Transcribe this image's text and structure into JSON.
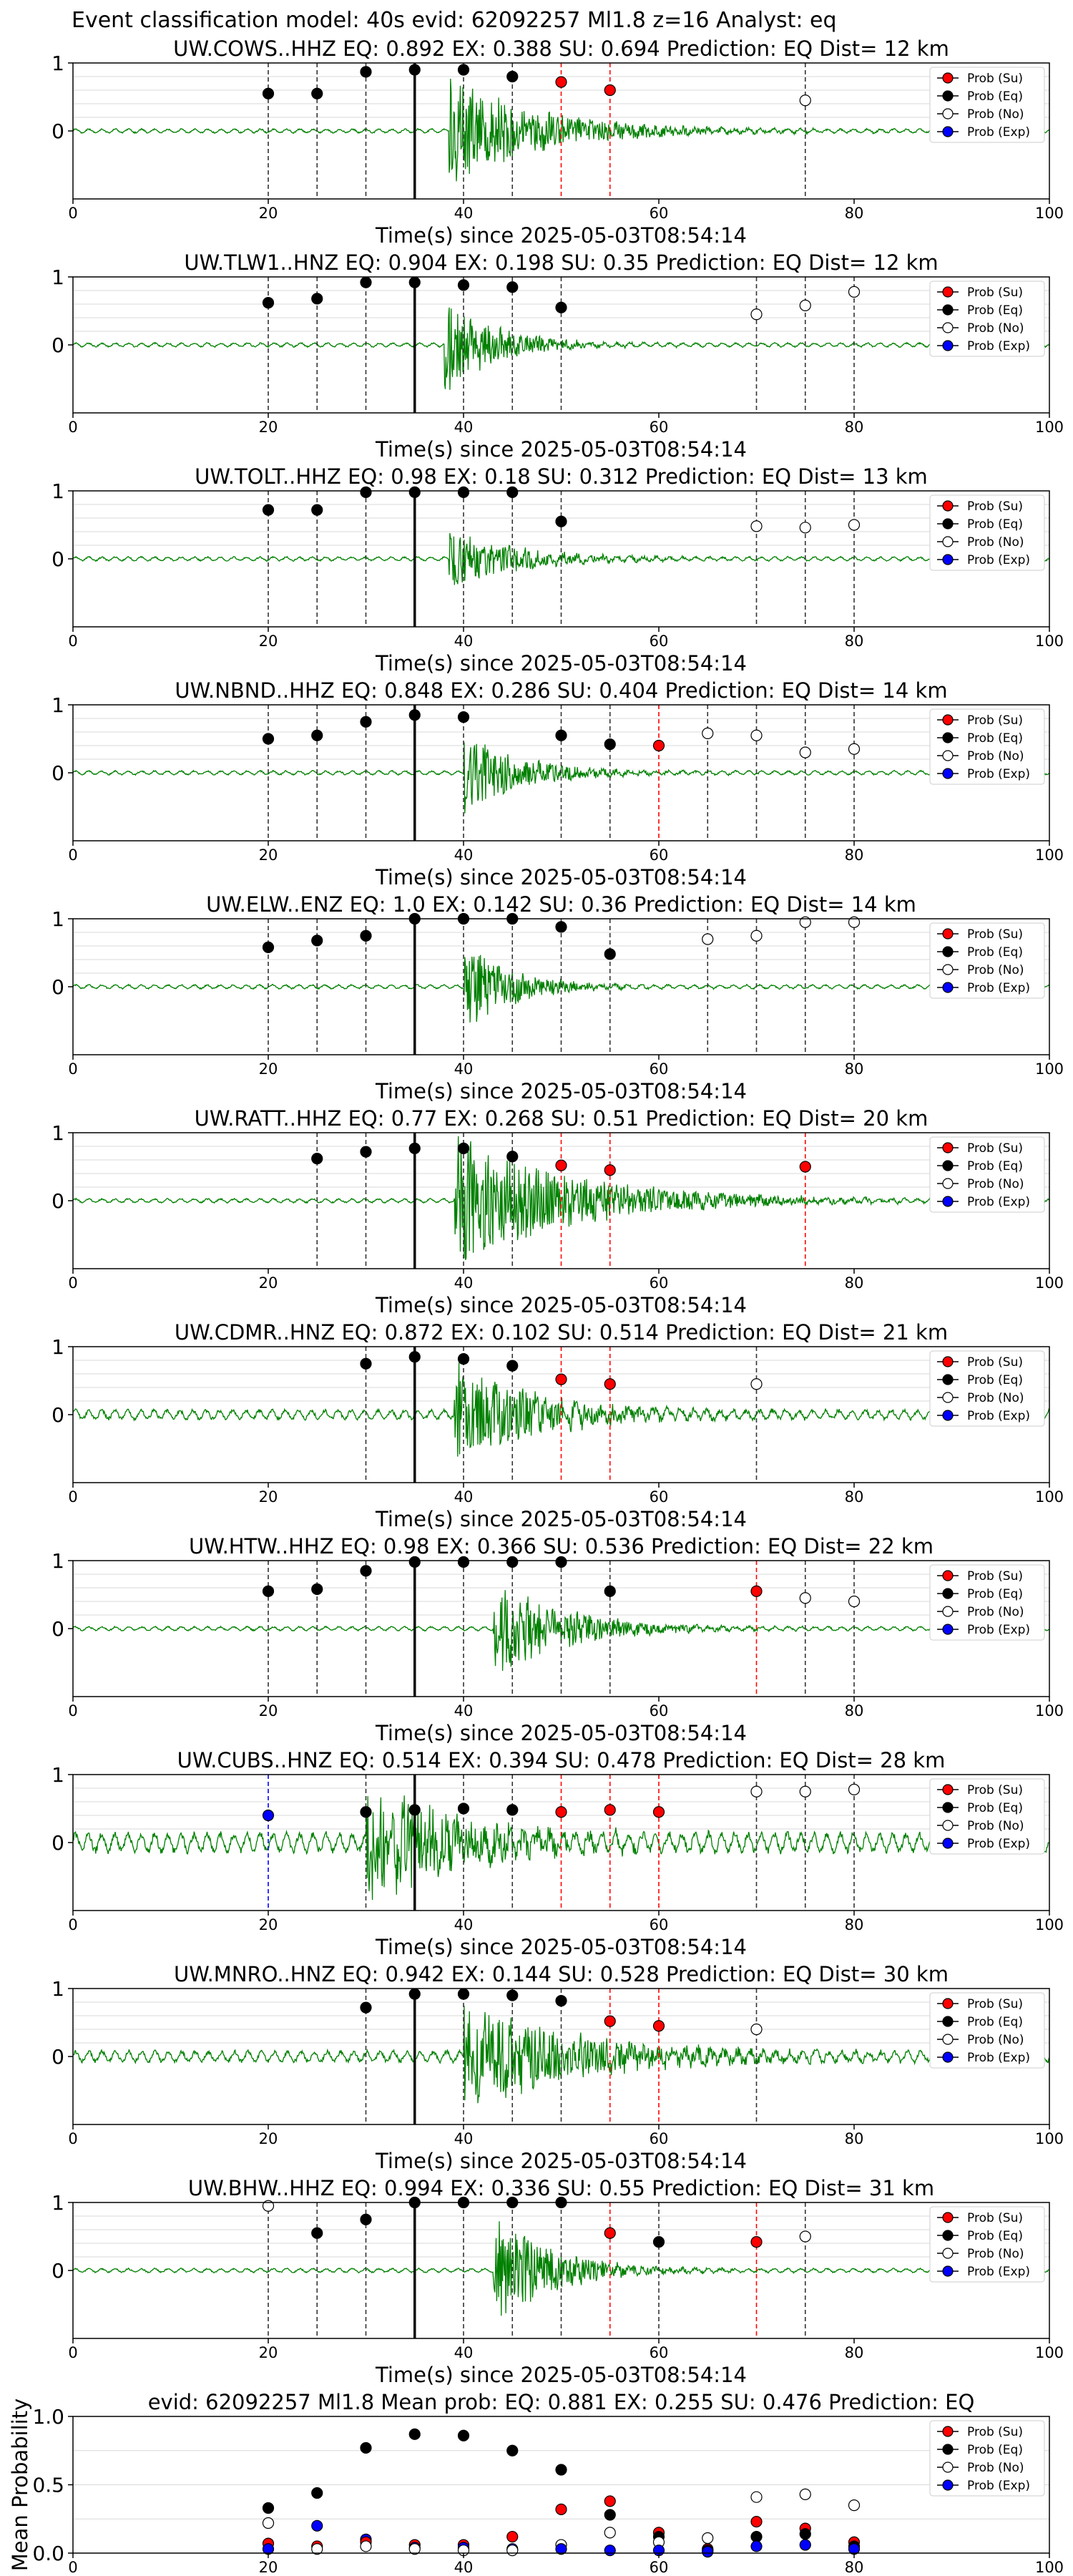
{
  "figure_title": "Event classification model: 40s evid: 62092257 Ml1.8 z=16 Analyst: eq",
  "xlabel": "Time(s) since 2025-05-03T08:54:14",
  "legend": [
    "Prob (Su)",
    "Prob (Eq)",
    "Prob (No)",
    "Prob (Exp)"
  ],
  "colors": {
    "su": "#ff0000",
    "eq": "#000000",
    "no": "#ffffff",
    "exp": "#0000ff",
    "trace": "#008000"
  },
  "chart_data": [
    {
      "type": "line",
      "title": "UW.COWS..HHZ   EQ: 0.892  EX: 0.388  SU: 0.694   Prediction: EQ    Dist= 12 km",
      "xlim": [
        0,
        100
      ],
      "ylim": [
        -1,
        1
      ],
      "xticks": [
        0,
        20,
        40,
        60,
        80,
        100
      ],
      "yticks": [
        1,
        0
      ],
      "grid": true,
      "legend": "top-right",
      "onset": 38.5,
      "amp": 0.85,
      "decay": 9,
      "points": [
        {
          "x": 20,
          "y": 0.55,
          "c": "eq"
        },
        {
          "x": 25,
          "y": 0.55,
          "c": "eq"
        },
        {
          "x": 30,
          "y": 0.87,
          "c": "eq"
        },
        {
          "x": 35,
          "y": 0.9,
          "c": "eq"
        },
        {
          "x": 40,
          "y": 0.9,
          "c": "eq"
        },
        {
          "x": 45,
          "y": 0.8,
          "c": "eq"
        },
        {
          "x": 50,
          "y": 0.72,
          "c": "su"
        },
        {
          "x": 55,
          "y": 0.6,
          "c": "su"
        },
        {
          "x": 75,
          "y": 0.45,
          "c": "no"
        }
      ]
    },
    {
      "type": "line",
      "title": "UW.TLW1..HNZ   EQ: 0.904  EX: 0.198  SU: 0.35   Prediction: EQ    Dist= 12 km",
      "xlim": [
        0,
        100
      ],
      "ylim": [
        -1,
        1
      ],
      "xticks": [
        0,
        20,
        40,
        60,
        80,
        100
      ],
      "yticks": [
        1,
        0
      ],
      "grid": true,
      "legend": "top-right",
      "onset": 38,
      "amp": 0.75,
      "decay": 5,
      "points": [
        {
          "x": 20,
          "y": 0.62,
          "c": "eq"
        },
        {
          "x": 25,
          "y": 0.68,
          "c": "eq"
        },
        {
          "x": 30,
          "y": 0.92,
          "c": "eq"
        },
        {
          "x": 35,
          "y": 0.92,
          "c": "eq"
        },
        {
          "x": 40,
          "y": 0.88,
          "c": "eq"
        },
        {
          "x": 45,
          "y": 0.85,
          "c": "eq"
        },
        {
          "x": 50,
          "y": 0.55,
          "c": "eq"
        },
        {
          "x": 70,
          "y": 0.45,
          "c": "no"
        },
        {
          "x": 75,
          "y": 0.58,
          "c": "no"
        },
        {
          "x": 80,
          "y": 0.78,
          "c": "no"
        }
      ]
    },
    {
      "type": "line",
      "title": "UW.TOLT..HHZ   EQ: 0.98  EX: 0.18  SU: 0.312   Prediction: EQ    Dist= 13 km",
      "xlim": [
        0,
        100
      ],
      "ylim": [
        -1,
        1
      ],
      "xticks": [
        0,
        20,
        40,
        60,
        80,
        100
      ],
      "yticks": [
        1,
        0
      ],
      "grid": true,
      "legend": "top-right",
      "onset": 38.5,
      "amp": 0.45,
      "decay": 7,
      "points": [
        {
          "x": 20,
          "y": 0.72,
          "c": "eq"
        },
        {
          "x": 25,
          "y": 0.72,
          "c": "eq"
        },
        {
          "x": 30,
          "y": 0.98,
          "c": "eq"
        },
        {
          "x": 35,
          "y": 0.98,
          "c": "eq"
        },
        {
          "x": 40,
          "y": 0.98,
          "c": "eq"
        },
        {
          "x": 45,
          "y": 0.98,
          "c": "eq"
        },
        {
          "x": 50,
          "y": 0.55,
          "c": "eq"
        },
        {
          "x": 70,
          "y": 0.48,
          "c": "no"
        },
        {
          "x": 75,
          "y": 0.46,
          "c": "no"
        },
        {
          "x": 80,
          "y": 0.5,
          "c": "no"
        }
      ]
    },
    {
      "type": "line",
      "title": "UW.NBND..HHZ   EQ: 0.848  EX: 0.286  SU: 0.404   Prediction: EQ    Dist= 14 km",
      "xlim": [
        0,
        100
      ],
      "ylim": [
        -1,
        1
      ],
      "xticks": [
        0,
        20,
        40,
        60,
        80,
        100
      ],
      "yticks": [
        1,
        0
      ],
      "grid": true,
      "legend": "top-right",
      "onset": 40,
      "amp": 0.6,
      "decay": 6,
      "points": [
        {
          "x": 20,
          "y": 0.5,
          "c": "eq"
        },
        {
          "x": 25,
          "y": 0.55,
          "c": "eq"
        },
        {
          "x": 30,
          "y": 0.75,
          "c": "eq"
        },
        {
          "x": 35,
          "y": 0.85,
          "c": "eq"
        },
        {
          "x": 40,
          "y": 0.82,
          "c": "eq"
        },
        {
          "x": 50,
          "y": 0.55,
          "c": "eq"
        },
        {
          "x": 55,
          "y": 0.42,
          "c": "eq"
        },
        {
          "x": 60,
          "y": 0.4,
          "c": "su"
        },
        {
          "x": 65,
          "y": 0.58,
          "c": "no"
        },
        {
          "x": 70,
          "y": 0.55,
          "c": "no"
        },
        {
          "x": 75,
          "y": 0.3,
          "c": "no"
        },
        {
          "x": 80,
          "y": 0.35,
          "c": "no"
        }
      ]
    },
    {
      "type": "line",
      "title": "UW.ELW..ENZ   EQ: 1.0  EX: 0.142  SU: 0.36   Prediction: EQ    Dist= 14 km",
      "xlim": [
        0,
        100
      ],
      "ylim": [
        -1,
        1
      ],
      "xticks": [
        0,
        20,
        40,
        60,
        80,
        100
      ],
      "yticks": [
        1,
        0
      ],
      "grid": true,
      "legend": "top-right",
      "onset": 40,
      "amp": 0.65,
      "decay": 5,
      "points": [
        {
          "x": 20,
          "y": 0.58,
          "c": "eq"
        },
        {
          "x": 25,
          "y": 0.68,
          "c": "eq"
        },
        {
          "x": 30,
          "y": 0.75,
          "c": "eq"
        },
        {
          "x": 35,
          "y": 1.0,
          "c": "eq"
        },
        {
          "x": 40,
          "y": 1.0,
          "c": "eq"
        },
        {
          "x": 45,
          "y": 1.0,
          "c": "eq"
        },
        {
          "x": 50,
          "y": 0.88,
          "c": "eq"
        },
        {
          "x": 55,
          "y": 0.48,
          "c": "eq"
        },
        {
          "x": 65,
          "y": 0.7,
          "c": "no"
        },
        {
          "x": 70,
          "y": 0.75,
          "c": "no"
        },
        {
          "x": 75,
          "y": 0.95,
          "c": "no"
        },
        {
          "x": 80,
          "y": 0.95,
          "c": "no"
        }
      ]
    },
    {
      "type": "line",
      "title": "UW.RATT..HHZ   EQ: 0.77  EX: 0.268  SU: 0.51   Prediction: EQ    Dist= 20 km",
      "xlim": [
        0,
        100
      ],
      "ylim": [
        -1,
        1
      ],
      "xticks": [
        0,
        20,
        40,
        60,
        80,
        100
      ],
      "yticks": [
        1,
        0
      ],
      "grid": true,
      "legend": "top-right",
      "onset": 39,
      "amp": 1.0,
      "decay": 12,
      "points": [
        {
          "x": 25,
          "y": 0.62,
          "c": "eq"
        },
        {
          "x": 30,
          "y": 0.72,
          "c": "eq"
        },
        {
          "x": 35,
          "y": 0.77,
          "c": "eq"
        },
        {
          "x": 40,
          "y": 0.77,
          "c": "eq"
        },
        {
          "x": 45,
          "y": 0.65,
          "c": "eq"
        },
        {
          "x": 50,
          "y": 0.52,
          "c": "su"
        },
        {
          "x": 55,
          "y": 0.45,
          "c": "su"
        },
        {
          "x": 75,
          "y": 0.5,
          "c": "su"
        }
      ]
    },
    {
      "type": "line",
      "title": "UW.CDMR..HNZ   EQ: 0.872  EX: 0.102  SU: 0.514   Prediction: EQ    Dist= 21 km",
      "xlim": [
        0,
        100
      ],
      "ylim": [
        -1,
        1
      ],
      "xticks": [
        0,
        20,
        40,
        60,
        80,
        100
      ],
      "yticks": [
        1,
        0
      ],
      "grid": true,
      "legend": "top-right",
      "onset": 39,
      "amp": 0.75,
      "decay": 9,
      "noise": 0.06,
      "points": [
        {
          "x": 30,
          "y": 0.75,
          "c": "eq"
        },
        {
          "x": 35,
          "y": 0.85,
          "c": "eq"
        },
        {
          "x": 40,
          "y": 0.82,
          "c": "eq"
        },
        {
          "x": 45,
          "y": 0.72,
          "c": "eq"
        },
        {
          "x": 50,
          "y": 0.52,
          "c": "su"
        },
        {
          "x": 55,
          "y": 0.45,
          "c": "su"
        },
        {
          "x": 70,
          "y": 0.45,
          "c": "no"
        }
      ]
    },
    {
      "type": "line",
      "title": "UW.HTW..HHZ   EQ: 0.98  EX: 0.366  SU: 0.536   Prediction: EQ    Dist= 22 km",
      "xlim": [
        0,
        100
      ],
      "ylim": [
        -1,
        1
      ],
      "xticks": [
        0,
        20,
        40,
        60,
        80,
        100
      ],
      "yticks": [
        1,
        0
      ],
      "grid": true,
      "legend": "top-right",
      "onset": 43,
      "amp": 0.8,
      "decay": 7,
      "points": [
        {
          "x": 20,
          "y": 0.55,
          "c": "eq"
        },
        {
          "x": 25,
          "y": 0.58,
          "c": "eq"
        },
        {
          "x": 30,
          "y": 0.85,
          "c": "eq"
        },
        {
          "x": 35,
          "y": 0.98,
          "c": "eq"
        },
        {
          "x": 40,
          "y": 0.98,
          "c": "eq"
        },
        {
          "x": 45,
          "y": 0.98,
          "c": "eq"
        },
        {
          "x": 50,
          "y": 0.98,
          "c": "eq"
        },
        {
          "x": 55,
          "y": 0.55,
          "c": "eq"
        },
        {
          "x": 70,
          "y": 0.55,
          "c": "su"
        },
        {
          "x": 75,
          "y": 0.45,
          "c": "no"
        },
        {
          "x": 80,
          "y": 0.4,
          "c": "no"
        }
      ]
    },
    {
      "type": "line",
      "title": "UW.CUBS..HNZ   EQ: 0.514  EX: 0.394  SU: 0.478   Prediction: EQ    Dist= 28 km",
      "xlim": [
        0,
        100
      ],
      "ylim": [
        -1,
        1
      ],
      "xticks": [
        0,
        20,
        40,
        60,
        80,
        100
      ],
      "yticks": [
        1,
        0
      ],
      "grid": true,
      "legend": "top-right",
      "onset": 30,
      "amp": 0.9,
      "decay": 10,
      "noise": 0.12,
      "points": [
        {
          "x": 20,
          "y": 0.4,
          "c": "exp"
        },
        {
          "x": 30,
          "y": 0.45,
          "c": "eq"
        },
        {
          "x": 35,
          "y": 0.48,
          "c": "eq"
        },
        {
          "x": 40,
          "y": 0.5,
          "c": "eq"
        },
        {
          "x": 45,
          "y": 0.48,
          "c": "eq"
        },
        {
          "x": 50,
          "y": 0.45,
          "c": "su"
        },
        {
          "x": 55,
          "y": 0.48,
          "c": "su"
        },
        {
          "x": 60,
          "y": 0.45,
          "c": "su"
        },
        {
          "x": 70,
          "y": 0.75,
          "c": "no"
        },
        {
          "x": 75,
          "y": 0.75,
          "c": "no"
        },
        {
          "x": 80,
          "y": 0.78,
          "c": "no"
        }
      ]
    },
    {
      "type": "line",
      "title": "UW.MNRO..HNZ   EQ: 0.942  EX: 0.144  SU: 0.528   Prediction: EQ    Dist= 30 km",
      "xlim": [
        0,
        100
      ],
      "ylim": [
        -1,
        1
      ],
      "xticks": [
        0,
        20,
        40,
        60,
        80,
        100
      ],
      "yticks": [
        1,
        0
      ],
      "grid": true,
      "legend": "top-right",
      "onset": 40,
      "amp": 0.8,
      "decay": 12,
      "noise": 0.07,
      "points": [
        {
          "x": 30,
          "y": 0.72,
          "c": "eq"
        },
        {
          "x": 35,
          "y": 0.92,
          "c": "eq"
        },
        {
          "x": 40,
          "y": 0.92,
          "c": "eq"
        },
        {
          "x": 45,
          "y": 0.9,
          "c": "eq"
        },
        {
          "x": 50,
          "y": 0.82,
          "c": "eq"
        },
        {
          "x": 55,
          "y": 0.52,
          "c": "su"
        },
        {
          "x": 60,
          "y": 0.45,
          "c": "su"
        },
        {
          "x": 70,
          "y": 0.4,
          "c": "no"
        }
      ]
    },
    {
      "type": "line",
      "title": "UW.BHW..HHZ   EQ: 0.994  EX: 0.336  SU: 0.55   Prediction: EQ    Dist= 31 km",
      "xlim": [
        0,
        100
      ],
      "ylim": [
        -1,
        1
      ],
      "xticks": [
        0,
        20,
        40,
        60,
        80,
        100
      ],
      "yticks": [
        1,
        0
      ],
      "grid": true,
      "legend": "top-right",
      "onset": 43,
      "amp": 0.85,
      "decay": 6,
      "points": [
        {
          "x": 20,
          "y": 0.95,
          "c": "no"
        },
        {
          "x": 25,
          "y": 0.55,
          "c": "eq"
        },
        {
          "x": 30,
          "y": 0.75,
          "c": "eq"
        },
        {
          "x": 35,
          "y": 1.0,
          "c": "eq"
        },
        {
          "x": 40,
          "y": 1.0,
          "c": "eq"
        },
        {
          "x": 45,
          "y": 1.0,
          "c": "eq"
        },
        {
          "x": 50,
          "y": 1.0,
          "c": "eq"
        },
        {
          "x": 55,
          "y": 0.55,
          "c": "su"
        },
        {
          "x": 60,
          "y": 0.42,
          "c": "eq"
        },
        {
          "x": 70,
          "y": 0.42,
          "c": "su"
        },
        {
          "x": 75,
          "y": 0.5,
          "c": "no"
        }
      ]
    },
    {
      "type": "scatter",
      "title": "evid: 62092257  Ml1.8   Mean prob:   EQ: 0.881  EX: 0.255  SU: 0.476   Prediction: EQ",
      "ylabel": "Mean Probability",
      "xlim": [
        0,
        100
      ],
      "ylim": [
        0,
        1
      ],
      "xticks": [
        0,
        20,
        40,
        60,
        80,
        100
      ],
      "yticks": [
        1.0,
        0.5,
        0.0
      ],
      "grid": true,
      "legend": "top-right",
      "points": [
        {
          "x": 20,
          "y": 0.33,
          "c": "eq"
        },
        {
          "x": 20,
          "y": 0.22,
          "c": "no"
        },
        {
          "x": 20,
          "y": 0.07,
          "c": "su"
        },
        {
          "x": 20,
          "y": 0.03,
          "c": "exp"
        },
        {
          "x": 25,
          "y": 0.44,
          "c": "eq"
        },
        {
          "x": 25,
          "y": 0.2,
          "c": "exp"
        },
        {
          "x": 25,
          "y": 0.05,
          "c": "su"
        },
        {
          "x": 25,
          "y": 0.03,
          "c": "no"
        },
        {
          "x": 30,
          "y": 0.77,
          "c": "eq"
        },
        {
          "x": 30,
          "y": 0.1,
          "c": "exp"
        },
        {
          "x": 30,
          "y": 0.08,
          "c": "su"
        },
        {
          "x": 30,
          "y": 0.05,
          "c": "no"
        },
        {
          "x": 35,
          "y": 0.87,
          "c": "eq"
        },
        {
          "x": 35,
          "y": 0.06,
          "c": "su"
        },
        {
          "x": 35,
          "y": 0.04,
          "c": "exp"
        },
        {
          "x": 35,
          "y": 0.03,
          "c": "no"
        },
        {
          "x": 40,
          "y": 0.86,
          "c": "eq"
        },
        {
          "x": 40,
          "y": 0.06,
          "c": "su"
        },
        {
          "x": 40,
          "y": 0.04,
          "c": "exp"
        },
        {
          "x": 40,
          "y": 0.02,
          "c": "no"
        },
        {
          "x": 45,
          "y": 0.75,
          "c": "eq"
        },
        {
          "x": 45,
          "y": 0.12,
          "c": "su"
        },
        {
          "x": 45,
          "y": 0.03,
          "c": "exp"
        },
        {
          "x": 45,
          "y": 0.02,
          "c": "no"
        },
        {
          "x": 50,
          "y": 0.61,
          "c": "eq"
        },
        {
          "x": 50,
          "y": 0.32,
          "c": "su"
        },
        {
          "x": 50,
          "y": 0.06,
          "c": "no"
        },
        {
          "x": 50,
          "y": 0.03,
          "c": "exp"
        },
        {
          "x": 55,
          "y": 0.38,
          "c": "su"
        },
        {
          "x": 55,
          "y": 0.28,
          "c": "eq"
        },
        {
          "x": 55,
          "y": 0.15,
          "c": "no"
        },
        {
          "x": 55,
          "y": 0.02,
          "c": "exp"
        },
        {
          "x": 60,
          "y": 0.15,
          "c": "su"
        },
        {
          "x": 60,
          "y": 0.12,
          "c": "eq"
        },
        {
          "x": 60,
          "y": 0.08,
          "c": "no"
        },
        {
          "x": 60,
          "y": 0.02,
          "c": "exp"
        },
        {
          "x": 65,
          "y": 0.11,
          "c": "no"
        },
        {
          "x": 65,
          "y": 0.03,
          "c": "su"
        },
        {
          "x": 65,
          "y": 0.02,
          "c": "eq"
        },
        {
          "x": 65,
          "y": 0.01,
          "c": "exp"
        },
        {
          "x": 70,
          "y": 0.41,
          "c": "no"
        },
        {
          "x": 70,
          "y": 0.23,
          "c": "su"
        },
        {
          "x": 70,
          "y": 0.12,
          "c": "eq"
        },
        {
          "x": 70,
          "y": 0.05,
          "c": "exp"
        },
        {
          "x": 75,
          "y": 0.43,
          "c": "no"
        },
        {
          "x": 75,
          "y": 0.18,
          "c": "su"
        },
        {
          "x": 75,
          "y": 0.14,
          "c": "eq"
        },
        {
          "x": 75,
          "y": 0.06,
          "c": "exp"
        },
        {
          "x": 80,
          "y": 0.35,
          "c": "no"
        },
        {
          "x": 80,
          "y": 0.08,
          "c": "su"
        },
        {
          "x": 80,
          "y": 0.05,
          "c": "eq"
        },
        {
          "x": 80,
          "y": 0.03,
          "c": "exp"
        }
      ]
    }
  ]
}
